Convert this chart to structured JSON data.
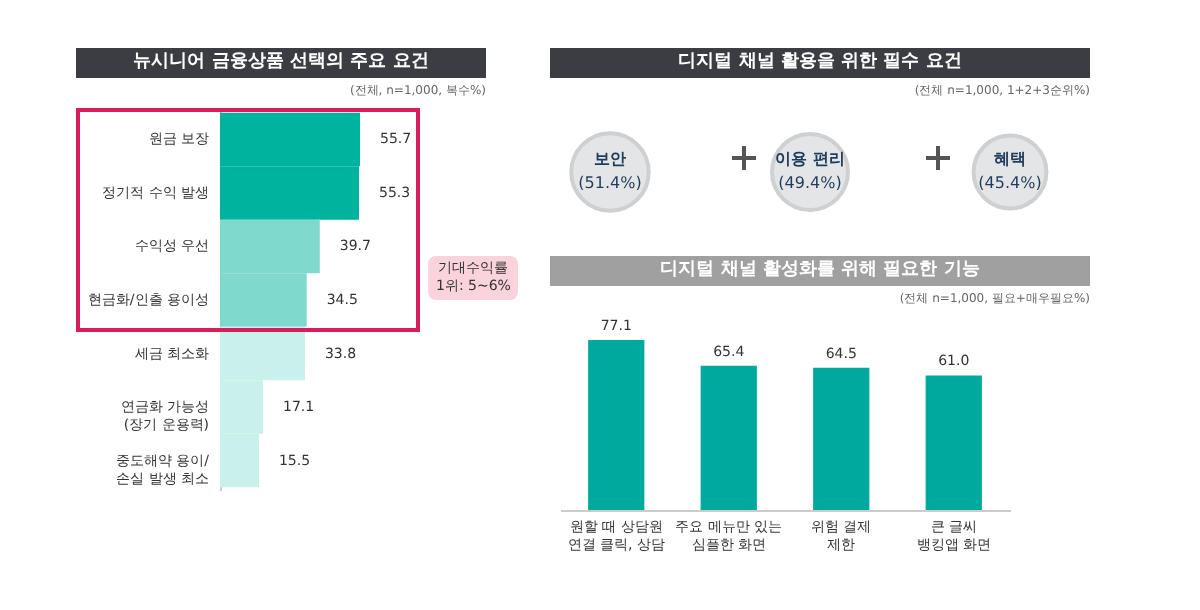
{
  "chart_data": [
    {
      "type": "bar",
      "orientation": "horizontal",
      "title": "뉴시니어 금융상품 선택의 주요 요건",
      "subtitle": "(전체, n=1,000, 복수%)",
      "categories": [
        "원금 보장",
        "정기적 수익 발생",
        "수익성 우선",
        "현금화/인출 용이성",
        "세금 최소화",
        "연금화 가능성\n(장기 운용력)",
        "중도해약 용이/\n손실 발생 최소"
      ],
      "values": [
        55.7,
        55.3,
        39.7,
        34.5,
        33.8,
        17.1,
        15.5
      ],
      "colors": [
        "#00b39f",
        "#00b39f",
        "#7fd9cd",
        "#7fd9cd",
        "#c9f0ea",
        "#c9f0ea",
        "#c9f0ea"
      ],
      "data_labels": true,
      "annotations": [
        "기대수익률\n1위: 5~6%"
      ]
    },
    {
      "type": "other",
      "title": "디지털 채널 활용을 위한 필수 요건",
      "subtitle": "(전체 n=1,000, 1+2+3순위%)",
      "categories": [
        "보안",
        "이용 편리",
        "혜택"
      ],
      "values": [
        51.4,
        49.4,
        45.4
      ],
      "value_labels": [
        "(51.4%)",
        "(49.4%)",
        "(45.4%)"
      ]
    },
    {
      "type": "bar",
      "title": "디지털 채널 활성화를 위해 필요한 기능",
      "subtitle": "(전체 n=1,000, 필요+매우필요%)",
      "categories": [
        "원할 때 상담원\n연결 클릭, 상담",
        "주요 메뉴만 있는\n심플한 화면",
        "위험 결제\n제한",
        "큰 글씨\n뱅킹앱 화면"
      ],
      "values": [
        77.1,
        65.4,
        64.5,
        61.0
      ],
      "color": "#00a99d",
      "value_labels": [
        "77.1",
        "65.4",
        "64.5",
        "61.0"
      ]
    }
  ]
}
